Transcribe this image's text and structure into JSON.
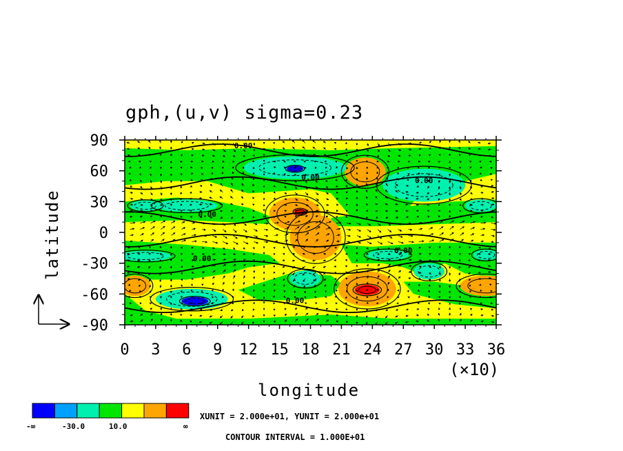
{
  "chart_data": {
    "type": "contour",
    "title": "gph,(u,v)  sigma=0.23",
    "xlabel": "longitude",
    "ylabel": "latitude",
    "x_scale_label": "(×10)",
    "xlim": [
      0,
      36
    ],
    "ylim": [
      -90,
      90
    ],
    "x_ticks": [
      "0",
      "3",
      "6",
      "9",
      "12",
      "15",
      "18",
      "21",
      "24",
      "27",
      "30",
      "33",
      "36"
    ],
    "y_ticks": [
      "90",
      "60",
      "30",
      "0",
      "-30",
      "-60",
      "-90"
    ],
    "contour_labels": [
      "0.00",
      "0.00",
      "0.00",
      "0.00",
      "0.00",
      "0.00",
      "0.00"
    ],
    "colorbar": {
      "colors": [
        "#0000ff",
        "#00a0ff",
        "#00f0b0",
        "#00e600",
        "#ffff00",
        "#ffa500",
        "#ff0000"
      ],
      "labels": [
        "-∞",
        "-30.0",
        "10.0",
        "∞"
      ]
    },
    "unit_text": "XUNIT = 2.000e+01, YUNIT = 2.000e+01",
    "contour_interval_text": "CONTOUR INTERVAL = 1.000E+01",
    "features": [
      {
        "x": 16.5,
        "y": 18,
        "level": "orange",
        "rx": 2.5,
        "ry": 16
      },
      {
        "x": 18.5,
        "y": -5,
        "level": "orange",
        "rx": 2.5,
        "ry": 22
      },
      {
        "x": 23.3,
        "y": 59,
        "level": "orange",
        "rx": 2.0,
        "ry": 14
      },
      {
        "x": 23.5,
        "y": -55,
        "level": "orange",
        "rx": 2.8,
        "ry": 17
      },
      {
        "x": 35,
        "y": -52,
        "level": "orange",
        "rx": 2.5,
        "ry": 10
      },
      {
        "x": 1,
        "y": -52,
        "level": "orange",
        "rx": 1.5,
        "ry": 10
      },
      {
        "x": 17,
        "y": 20,
        "level": "red",
        "rx": 0.6,
        "ry": 3
      },
      {
        "x": 23.5,
        "y": -56,
        "level": "red",
        "rx": 1.2,
        "ry": 5
      },
      {
        "x": 16.5,
        "y": 63,
        "level": "cyan",
        "rx": 5,
        "ry": 11
      },
      {
        "x": 29,
        "y": 46,
        "level": "cyan",
        "rx": 4,
        "ry": 16
      },
      {
        "x": 6.5,
        "y": -65,
        "level": "cyan",
        "rx": 3.5,
        "ry": 10
      },
      {
        "x": 17.5,
        "y": -45,
        "level": "cyan",
        "rx": 1.5,
        "ry": 8
      },
      {
        "x": 29.5,
        "y": -38,
        "level": "cyan",
        "rx": 1.5,
        "ry": 8
      },
      {
        "x": 6,
        "y": 26,
        "level": "cyan",
        "rx": 3,
        "ry": 6
      },
      {
        "x": 2,
        "y": 26,
        "level": "cyan",
        "rx": 1.5,
        "ry": 5
      },
      {
        "x": 34.5,
        "y": 26,
        "level": "cyan",
        "rx": 1.5,
        "ry": 6
      },
      {
        "x": 2,
        "y": -23,
        "level": "cyan",
        "rx": 2.5,
        "ry": 5
      },
      {
        "x": 25.5,
        "y": -22,
        "level": "cyan",
        "rx": 2,
        "ry": 5
      },
      {
        "x": 35,
        "y": -22,
        "level": "cyan",
        "rx": 1.2,
        "ry": 5
      },
      {
        "x": 16.5,
        "y": 62,
        "level": "blue",
        "rx": 0.8,
        "ry": 3
      },
      {
        "x": 6.8,
        "y": -67,
        "level": "blue",
        "rx": 1.3,
        "ry": 4
      }
    ]
  }
}
